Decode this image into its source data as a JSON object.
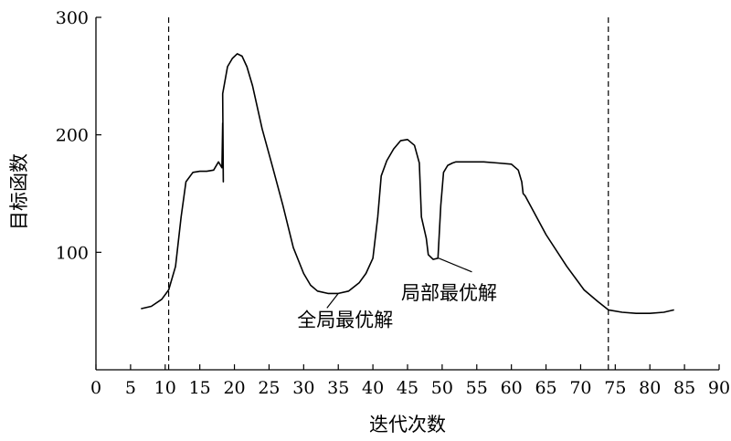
{
  "chart_data": {
    "type": "line",
    "xlabel": "迭代次数",
    "ylabel": "目标函数",
    "xlim": [
      0,
      90
    ],
    "ylim": [
      0,
      300
    ],
    "xticks": [
      0,
      5,
      10,
      15,
      20,
      25,
      30,
      35,
      40,
      45,
      50,
      55,
      60,
      65,
      70,
      75,
      80,
      85,
      90
    ],
    "yticks": [
      100,
      200,
      300
    ],
    "grid": false,
    "vlines": [
      10.5,
      74
    ],
    "series": [
      {
        "x": [
          6.5,
          8,
          9.5,
          10.5,
          11.5,
          12.3,
          13,
          14,
          15,
          16,
          17,
          17.7,
          18.2,
          18.3,
          18.4,
          18.3,
          19,
          19.7,
          20.4,
          21.1,
          21.8,
          22.6,
          24,
          25.5,
          27,
          28.5,
          30,
          31,
          32,
          33.5,
          35,
          36.5,
          38,
          39,
          40,
          40.7,
          41.2,
          42,
          43,
          44,
          45,
          46,
          46.7,
          47,
          47.7,
          48,
          48.7,
          49.4,
          49.8,
          50.2,
          50.8,
          51.5,
          52,
          53,
          54.5,
          56,
          58,
          60,
          61,
          61.5,
          61.7,
          62,
          65,
          68,
          70.5,
          72.5,
          74,
          76,
          78,
          80,
          82,
          83.5
        ],
        "y": [
          52,
          54,
          60,
          68,
          88,
          130,
          160,
          168,
          169,
          169,
          170,
          177,
          172,
          210,
          160,
          235,
          258,
          265,
          269,
          267,
          258,
          242,
          205,
          173,
          140,
          104,
          82,
          72,
          67,
          65,
          65,
          67,
          74,
          82,
          95,
          130,
          165,
          178,
          188,
          195,
          196,
          191,
          176,
          130,
          112,
          98,
          94,
          95,
          140,
          168,
          174,
          176,
          177,
          177,
          177,
          177,
          176,
          175,
          170,
          160,
          150,
          148,
          115,
          88,
          68,
          58,
          51,
          49,
          48,
          48,
          49,
          51
        ]
      }
    ],
    "annotations": [
      {
        "text": "全局最优解",
        "point": [
          35,
          65
        ],
        "text_at": [
          36,
          37
        ]
      },
      {
        "text": "局部最优解",
        "point": [
          49.5,
          95
        ],
        "text_at": [
          51,
          60
        ]
      }
    ]
  }
}
